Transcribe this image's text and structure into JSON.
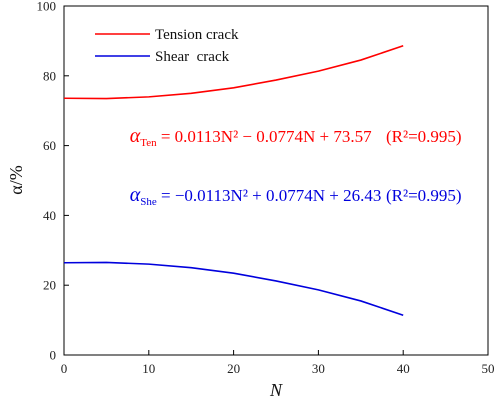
{
  "chart_data": {
    "type": "line",
    "xlabel": "N",
    "ylabel": "α/%",
    "xlim": [
      0,
      50
    ],
    "ylim": [
      0,
      100
    ],
    "xticks": [
      0,
      10,
      20,
      30,
      40,
      50
    ],
    "yticks": [
      0,
      20,
      40,
      60,
      80,
      100
    ],
    "grid": false,
    "legend_position": "top-left",
    "series": [
      {
        "name": "Tension crack",
        "color": "#ff0000",
        "x": [
          0,
          5,
          10,
          15,
          20,
          25,
          30,
          35,
          40
        ],
        "y": [
          73.57,
          73.48,
          73.96,
          74.99,
          76.56,
          78.77,
          81.34,
          84.51,
          88.6
        ]
      },
      {
        "name": "Shear  crack",
        "color": "#0000dd",
        "x": [
          0,
          5,
          10,
          15,
          20,
          25,
          30,
          35,
          40
        ],
        "y": [
          26.43,
          26.52,
          26.04,
          25.01,
          23.44,
          21.23,
          18.66,
          15.49,
          11.4
        ]
      }
    ],
    "annotations": [
      {
        "series": "Tension crack",
        "color": "#ff0000",
        "symbol": "α",
        "subscript": "Ten",
        "equation": " = 0.0113N² − 0.0774N + 73.57",
        "r2": "(R²=0.995)"
      },
      {
        "series": "Shear  crack",
        "color": "#0000dd",
        "symbol": "α",
        "subscript": "She",
        "equation": " = −0.0113N² + 0.0774N + 26.43",
        "r2": "(R²=0.995)"
      }
    ]
  }
}
